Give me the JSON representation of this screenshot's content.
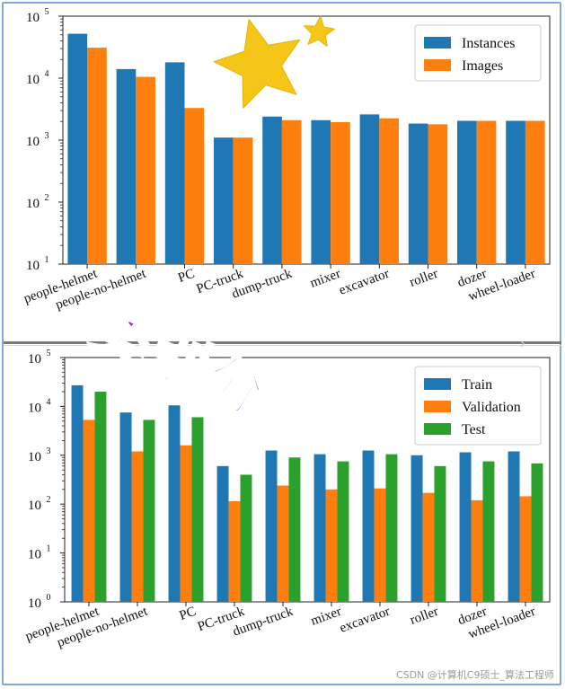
{
  "chart_data": [
    {
      "type": "bar",
      "categories": [
        "people-helmet",
        "people-no-helmet",
        "PC",
        "PC-truck",
        "dump-truck",
        "mixer",
        "excavator",
        "roller",
        "dozer",
        "wheel-loader"
      ],
      "series": [
        {
          "name": "Instances",
          "color": "#1f77b4",
          "values": [
            52000,
            14000,
            18000,
            1100,
            2400,
            2100,
            2600,
            1850,
            2050,
            2050
          ]
        },
        {
          "name": "Images",
          "color": "#ff7f0e",
          "values": [
            31000,
            10500,
            3300,
            1100,
            2100,
            1950,
            2250,
            1800,
            2050,
            2050
          ]
        }
      ],
      "yscale": "log",
      "ylim": [
        10,
        100000
      ],
      "yticks": [
        {
          "base": "10",
          "exp": "1"
        },
        {
          "base": "10",
          "exp": "2"
        },
        {
          "base": "10",
          "exp": "3"
        },
        {
          "base": "10",
          "exp": "4"
        },
        {
          "base": "10",
          "exp": "5"
        }
      ],
      "legend_position": "top-right"
    },
    {
      "type": "bar",
      "categories": [
        "people-helmet",
        "people-no-helmet",
        "PC",
        "PC-truck",
        "dump-truck",
        "mixer",
        "excavator",
        "roller",
        "dozer",
        "wheel-loader"
      ],
      "series": [
        {
          "name": "Train",
          "color": "#1f77b4",
          "values": [
            27000,
            7500,
            10500,
            600,
            1250,
            1050,
            1250,
            1000,
            1150,
            1200
          ]
        },
        {
          "name": "Validation",
          "color": "#ff7f0e",
          "values": [
            5300,
            1200,
            1600,
            115,
            240,
            200,
            210,
            170,
            120,
            145
          ]
        },
        {
          "name": "Test",
          "color": "#2ca02c",
          "values": [
            20000,
            5300,
            6000,
            400,
            900,
            750,
            1050,
            600,
            750,
            680
          ]
        }
      ],
      "yscale": "log",
      "ylim": [
        1,
        100000
      ],
      "yticks": [
        {
          "base": "10",
          "exp": "0"
        },
        {
          "base": "10",
          "exp": "1"
        },
        {
          "base": "10",
          "exp": "2"
        },
        {
          "base": "10",
          "exp": "3"
        },
        {
          "base": "10",
          "exp": "4"
        },
        {
          "base": "10",
          "exp": "5"
        }
      ],
      "legend_position": "top-right"
    }
  ],
  "overlay": {
    "text": "类别分布",
    "color": "#8a2be2"
  },
  "watermark": "CSDN @计算机C9硕士_算法工程师",
  "stars": [
    "star-large",
    "star-small"
  ]
}
